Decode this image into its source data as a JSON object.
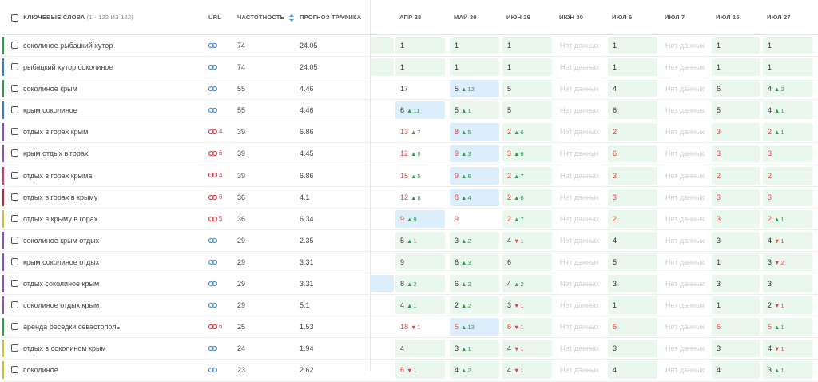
{
  "header": {
    "keywords_label": "КЛЮЧЕВЫЕ СЛОВА",
    "keywords_range": "(1 - 122 ИЗ 122)",
    "url_label": "URL",
    "freq_label": "ЧАСТОТНОСТЬ",
    "forecast_label": "ПРОГНОЗ ТРАФИКА",
    "dates": [
      "АПР 28",
      "МАЙ 30",
      "ИЮН 29",
      "ИЮН 30",
      "ИЮЛ 6",
      "ИЮЛ 7",
      "ИЮЛ 15",
      "ИЮЛ 27"
    ]
  },
  "colors": {
    "green_bg": "#e9f7ec",
    "blue_bg": "#dceefb",
    "up": "#2e9a4a",
    "down": "#e04444",
    "link_blue": "#4a8fd8"
  },
  "no_data_label": "Нет данных",
  "rows": [
    {
      "keyword": "соколиное рыбацкий хутор",
      "bar": "#2e9a4a",
      "url": {
        "type": "link-blue-icon",
        "count": ""
      },
      "freq": "74",
      "forecast": "24.05",
      "edge": "g",
      "cells": [
        {
          "v": "1",
          "bg": "g"
        },
        {
          "v": "1",
          "bg": "g"
        },
        {
          "v": "1",
          "bg": "g"
        },
        {
          "v": "Нет данных",
          "bg": "nd"
        },
        {
          "v": "1",
          "bg": "g"
        },
        {
          "v": "Нет данных",
          "bg": "nd"
        },
        {
          "v": "1",
          "bg": "g"
        },
        {
          "v": "1",
          "bg": "g"
        }
      ]
    },
    {
      "keyword": "рыбацкий хутор соколиное",
      "bar": "#3a7bd5",
      "url": {
        "type": "link-blue-icon",
        "count": ""
      },
      "freq": "74",
      "forecast": "24.05",
      "edge": "g",
      "cells": [
        {
          "v": "1",
          "bg": "g"
        },
        {
          "v": "1",
          "bg": "g"
        },
        {
          "v": "1",
          "bg": "g"
        },
        {
          "v": "Нет данных",
          "bg": "nd"
        },
        {
          "v": "1",
          "bg": "g"
        },
        {
          "v": "Нет данных",
          "bg": "nd"
        },
        {
          "v": "1",
          "bg": "g"
        },
        {
          "v": "1",
          "bg": "g"
        }
      ]
    },
    {
      "keyword": "соколиное крым",
      "bar": "#2e9a4a",
      "url": {
        "type": "link-blue-icon",
        "count": ""
      },
      "freq": "55",
      "forecast": "4.46",
      "edge": "",
      "cells": [
        {
          "v": "17",
          "bg": "n"
        },
        {
          "v": "5",
          "bg": "b",
          "d": "up",
          "c": "12"
        },
        {
          "v": "5",
          "bg": "g"
        },
        {
          "v": "Нет данных",
          "bg": "nd"
        },
        {
          "v": "4",
          "bg": "g"
        },
        {
          "v": "Нет данных",
          "bg": "nd"
        },
        {
          "v": "6",
          "bg": "g"
        },
        {
          "v": "4",
          "bg": "g",
          "d": "up",
          "c": "2"
        }
      ]
    },
    {
      "keyword": "крым соколиное",
      "bar": "#3a7bd5",
      "url": {
        "type": "link-blue-icon",
        "count": ""
      },
      "freq": "55",
      "forecast": "4.46",
      "edge": "",
      "cells": [
        {
          "v": "6",
          "bg": "b",
          "d": "up",
          "c": "11"
        },
        {
          "v": "5",
          "bg": "g",
          "d": "up",
          "c": "1"
        },
        {
          "v": "5",
          "bg": "g"
        },
        {
          "v": "Нет данных",
          "bg": "nd"
        },
        {
          "v": "6",
          "bg": "g"
        },
        {
          "v": "Нет данных",
          "bg": "nd"
        },
        {
          "v": "5",
          "bg": "g"
        },
        {
          "v": "4",
          "bg": "g",
          "d": "up",
          "c": "1"
        }
      ]
    },
    {
      "keyword": "отдых в горах крым",
      "bar": "#8a4fbf",
      "url": {
        "type": "link-red-icon",
        "count": "4"
      },
      "freq": "39",
      "forecast": "6.86",
      "edge": "",
      "cells": [
        {
          "v": "13",
          "bg": "n",
          "red": true,
          "d": "up",
          "c": "7"
        },
        {
          "v": "8",
          "bg": "b",
          "red": true,
          "d": "up",
          "c": "5"
        },
        {
          "v": "2",
          "bg": "g",
          "red": true,
          "d": "up",
          "c": "6"
        },
        {
          "v": "Нет данных",
          "bg": "nd"
        },
        {
          "v": "2",
          "bg": "g",
          "red": true
        },
        {
          "v": "Нет данных",
          "bg": "nd"
        },
        {
          "v": "3",
          "bg": "g",
          "red": true
        },
        {
          "v": "2",
          "bg": "g",
          "red": true,
          "d": "up",
          "c": "1"
        }
      ]
    },
    {
      "keyword": "крым отдых в горах",
      "bar": "#8a4fbf",
      "url": {
        "type": "link-red-icon",
        "count": "6"
      },
      "freq": "39",
      "forecast": "4.45",
      "edge": "",
      "cells": [
        {
          "v": "12",
          "bg": "n",
          "red": true,
          "d": "up",
          "c": "8"
        },
        {
          "v": "9",
          "bg": "b",
          "red": true,
          "d": "up",
          "c": "3"
        },
        {
          "v": "3",
          "bg": "g",
          "red": true,
          "d": "up",
          "c": "6"
        },
        {
          "v": "Нет данных",
          "bg": "nd"
        },
        {
          "v": "6",
          "bg": "g",
          "red": true
        },
        {
          "v": "Нет данных",
          "bg": "nd"
        },
        {
          "v": "3",
          "bg": "g",
          "red": true
        },
        {
          "v": "3",
          "bg": "g",
          "red": true
        }
      ]
    },
    {
      "keyword": "отдых в горах крыма",
      "bar": "#d23a6a",
      "url": {
        "type": "link-red-icon",
        "count": "4"
      },
      "freq": "39",
      "forecast": "6.86",
      "edge": "",
      "cells": [
        {
          "v": "15",
          "bg": "n",
          "red": true,
          "d": "up",
          "c": "5"
        },
        {
          "v": "9",
          "bg": "b",
          "red": true,
          "d": "up",
          "c": "6"
        },
        {
          "v": "2",
          "bg": "g",
          "red": true,
          "d": "up",
          "c": "7"
        },
        {
          "v": "Нет данных",
          "bg": "nd"
        },
        {
          "v": "3",
          "bg": "g",
          "red": true
        },
        {
          "v": "Нет данных",
          "bg": "nd"
        },
        {
          "v": "2",
          "bg": "g",
          "red": true
        },
        {
          "v": "2",
          "bg": "g",
          "red": true
        }
      ]
    },
    {
      "keyword": "отдых в горах в крыму",
      "bar": "#b02d3d",
      "url": {
        "type": "link-red-icon",
        "count": "6"
      },
      "freq": "36",
      "forecast": "4.1",
      "edge": "",
      "cells": [
        {
          "v": "12",
          "bg": "n",
          "red": true,
          "d": "up",
          "c": "8"
        },
        {
          "v": "8",
          "bg": "b",
          "red": true,
          "d": "up",
          "c": "4"
        },
        {
          "v": "2",
          "bg": "g",
          "red": true,
          "d": "up",
          "c": "6"
        },
        {
          "v": "Нет данных",
          "bg": "nd"
        },
        {
          "v": "3",
          "bg": "g",
          "red": true
        },
        {
          "v": "Нет данных",
          "bg": "nd"
        },
        {
          "v": "3",
          "bg": "g",
          "red": true
        },
        {
          "v": "3",
          "bg": "g",
          "red": true
        }
      ]
    },
    {
      "keyword": "отдых в крыму в горах",
      "bar": "#c7c23a",
      "url": {
        "type": "link-red-icon",
        "count": "5"
      },
      "freq": "36",
      "forecast": "6.34",
      "edge": "",
      "cells": [
        {
          "v": "9",
          "bg": "b",
          "red": true,
          "d": "up",
          "c": "9"
        },
        {
          "v": "9",
          "bg": "n",
          "red": true
        },
        {
          "v": "2",
          "bg": "g",
          "red": true,
          "d": "up",
          "c": "7"
        },
        {
          "v": "Нет данных",
          "bg": "nd"
        },
        {
          "v": "2",
          "bg": "g",
          "red": true
        },
        {
          "v": "Нет данных",
          "bg": "nd"
        },
        {
          "v": "3",
          "bg": "g",
          "red": true
        },
        {
          "v": "2",
          "bg": "g",
          "red": true,
          "d": "up",
          "c": "1"
        }
      ]
    },
    {
      "keyword": "соколиное крым отдых",
      "bar": "#8a4fbf",
      "url": {
        "type": "link-blue-icon",
        "count": ""
      },
      "freq": "29",
      "forecast": "2.35",
      "edge": "",
      "cells": [
        {
          "v": "5",
          "bg": "g",
          "d": "up",
          "c": "1"
        },
        {
          "v": "3",
          "bg": "g",
          "d": "up",
          "c": "2"
        },
        {
          "v": "4",
          "bg": "g",
          "d": "dn",
          "c": "1"
        },
        {
          "v": "Нет данных",
          "bg": "nd"
        },
        {
          "v": "4",
          "bg": "g"
        },
        {
          "v": "Нет данных",
          "bg": "nd"
        },
        {
          "v": "3",
          "bg": "g"
        },
        {
          "v": "4",
          "bg": "g",
          "d": "dn",
          "c": "1"
        }
      ]
    },
    {
      "keyword": "крым соколиное отдых",
      "bar": "#8a4fbf",
      "url": {
        "type": "link-blue-icon",
        "count": ""
      },
      "freq": "29",
      "forecast": "3.31",
      "edge": "",
      "cells": [
        {
          "v": "9",
          "bg": "g"
        },
        {
          "v": "6",
          "bg": "g",
          "d": "up",
          "c": "3"
        },
        {
          "v": "6",
          "bg": "g"
        },
        {
          "v": "Нет данных",
          "bg": "nd"
        },
        {
          "v": "5",
          "bg": "g"
        },
        {
          "v": "Нет данных",
          "bg": "nd"
        },
        {
          "v": "1",
          "bg": "g"
        },
        {
          "v": "3",
          "bg": "g",
          "d": "dn",
          "c": "2"
        }
      ]
    },
    {
      "keyword": "отдых соколиное крым",
      "bar": "#8a4fbf",
      "url": {
        "type": "link-blue-icon",
        "count": ""
      },
      "freq": "29",
      "forecast": "3.31",
      "edge": "b",
      "cells": [
        {
          "v": "8",
          "bg": "g",
          "d": "up",
          "c": "2"
        },
        {
          "v": "6",
          "bg": "g",
          "d": "up",
          "c": "2"
        },
        {
          "v": "4",
          "bg": "g",
          "d": "up",
          "c": "2"
        },
        {
          "v": "Нет данных",
          "bg": "nd"
        },
        {
          "v": "3",
          "bg": "g"
        },
        {
          "v": "Нет данных",
          "bg": "nd"
        },
        {
          "v": "3",
          "bg": "g"
        },
        {
          "v": "3",
          "bg": "g"
        }
      ]
    },
    {
      "keyword": "соколиное отдых крым",
      "bar": "#8a4fbf",
      "url": {
        "type": "link-blue-icon",
        "count": ""
      },
      "freq": "29",
      "forecast": "5.1",
      "edge": "",
      "cells": [
        {
          "v": "4",
          "bg": "g",
          "d": "up",
          "c": "1"
        },
        {
          "v": "2",
          "bg": "g",
          "d": "up",
          "c": "2"
        },
        {
          "v": "3",
          "bg": "g",
          "d": "dn",
          "c": "1"
        },
        {
          "v": "Нет данных",
          "bg": "nd"
        },
        {
          "v": "1",
          "bg": "g"
        },
        {
          "v": "Нет данных",
          "bg": "nd"
        },
        {
          "v": "1",
          "bg": "g"
        },
        {
          "v": "2",
          "bg": "g",
          "d": "dn",
          "c": "1"
        }
      ]
    },
    {
      "keyword": "аренда беседки севастополь",
      "bar": "#2e9a4a",
      "url": {
        "type": "link-red-icon",
        "count": "6"
      },
      "freq": "25",
      "forecast": "1.53",
      "edge": "",
      "cells": [
        {
          "v": "18",
          "bg": "n",
          "red": true,
          "d": "dn",
          "c": "1"
        },
        {
          "v": "5",
          "bg": "b",
          "red": true,
          "d": "up",
          "c": "13"
        },
        {
          "v": "6",
          "bg": "g",
          "red": true,
          "d": "dn",
          "c": "1"
        },
        {
          "v": "Нет данных",
          "bg": "nd"
        },
        {
          "v": "6",
          "bg": "g",
          "red": true
        },
        {
          "v": "Нет данных",
          "bg": "nd"
        },
        {
          "v": "6",
          "bg": "g",
          "red": true
        },
        {
          "v": "5",
          "bg": "g",
          "red": true,
          "d": "up",
          "c": "1"
        }
      ]
    },
    {
      "keyword": "отдых в соколином крым",
      "bar": "#c7c23a",
      "url": {
        "type": "link-blue-icon",
        "count": ""
      },
      "freq": "24",
      "forecast": "1.94",
      "edge": "",
      "cells": [
        {
          "v": "4",
          "bg": "g"
        },
        {
          "v": "3",
          "bg": "g",
          "d": "up",
          "c": "1"
        },
        {
          "v": "4",
          "bg": "g",
          "d": "dn",
          "c": "1"
        },
        {
          "v": "Нет данных",
          "bg": "nd"
        },
        {
          "v": "3",
          "bg": "g"
        },
        {
          "v": "Нет данных",
          "bg": "nd"
        },
        {
          "v": "3",
          "bg": "g"
        },
        {
          "v": "4",
          "bg": "g",
          "d": "dn",
          "c": "1"
        }
      ]
    },
    {
      "keyword": "соколиное",
      "bar": "#c7c23a",
      "url": {
        "type": "link-blue-icon",
        "count": ""
      },
      "freq": "23",
      "forecast": "2.62",
      "edge": "",
      "cells": [
        {
          "v": "6",
          "bg": "g",
          "red": true,
          "d": "dn",
          "c": "1"
        },
        {
          "v": "4",
          "bg": "g",
          "d": "up",
          "c": "2"
        },
        {
          "v": "4",
          "bg": "g",
          "d": "dn",
          "c": "1"
        },
        {
          "v": "Нет данных",
          "bg": "nd"
        },
        {
          "v": "4",
          "bg": "g"
        },
        {
          "v": "Нет данных",
          "bg": "nd"
        },
        {
          "v": "4",
          "bg": "g"
        },
        {
          "v": "3",
          "bg": "g",
          "d": "up",
          "c": "1"
        }
      ]
    }
  ]
}
